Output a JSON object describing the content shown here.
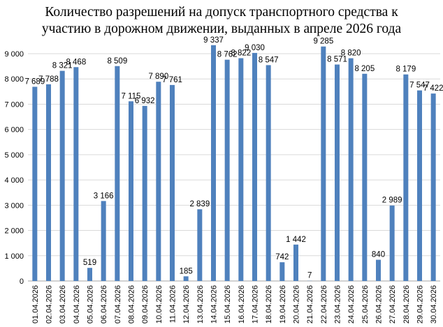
{
  "colors": {
    "bar": "#4f81bd",
    "grid": "#d9d9d9",
    "axis": "#a6a6a6",
    "text": "#000000"
  },
  "chart_data": {
    "type": "bar",
    "title_lines": [
      "Количество разрешений на допуск транспортного средства к",
      "участию в дорожном движении, выданных в апреле 2026 года"
    ],
    "xlabel": "",
    "ylabel": "",
    "ylim": [
      0,
      9000
    ],
    "yticks": [
      0,
      1000,
      2000,
      3000,
      4000,
      5000,
      6000,
      7000,
      8000,
      9000
    ],
    "ytick_labels": [
      "0",
      "1 000",
      "2 000",
      "3 000",
      "4 000",
      "5 000",
      "6 000",
      "7 000",
      "8 000",
      "9 000"
    ],
    "grid": true,
    "legend": "none",
    "categories": [
      "01.04.2026",
      "02.04.2026",
      "03.04.2026",
      "04.04.2026",
      "05.04.2026",
      "06.04.2026",
      "07.04.2026",
      "08.04.2026",
      "09.04.2026",
      "10.04.2026",
      "11.04.2026",
      "12.04.2026",
      "13.04.2026",
      "14.04.2026",
      "15.04.2026",
      "16.04.2026",
      "17.04.2026",
      "18.04.2026",
      "19.04.2026",
      "20.04.2026",
      "21.04.2026",
      "22.04.2026",
      "23.04.2026",
      "24.04.2026",
      "25.04.2026",
      "26.04.2026",
      "27.04.2026",
      "28.04.2026",
      "29.04.2026",
      "30.04.2026"
    ],
    "values": [
      7689,
      7788,
      8321,
      8468,
      519,
      3166,
      8509,
      7115,
      6932,
      7890,
      7761,
      185,
      2839,
      9337,
      8762,
      8822,
      9030,
      8547,
      742,
      1442,
      7,
      9285,
      8571,
      8820,
      8205,
      840,
      2989,
      8179,
      7547,
      7422
    ],
    "value_labels": [
      "7 689",
      "7 788",
      "8 321",
      "8 468",
      "519",
      "3 166",
      "8 509",
      "7 115",
      "6 932",
      "7 890",
      "7 761",
      "185",
      "2 839",
      "9 337",
      "8 762",
      "8 822",
      "9 030",
      "8 547",
      "742",
      "1 442",
      "7",
      "9 285",
      "8 571",
      "8 820",
      "8 205",
      "840",
      "2 989",
      "8 179",
      "7 547",
      "7 422"
    ]
  }
}
